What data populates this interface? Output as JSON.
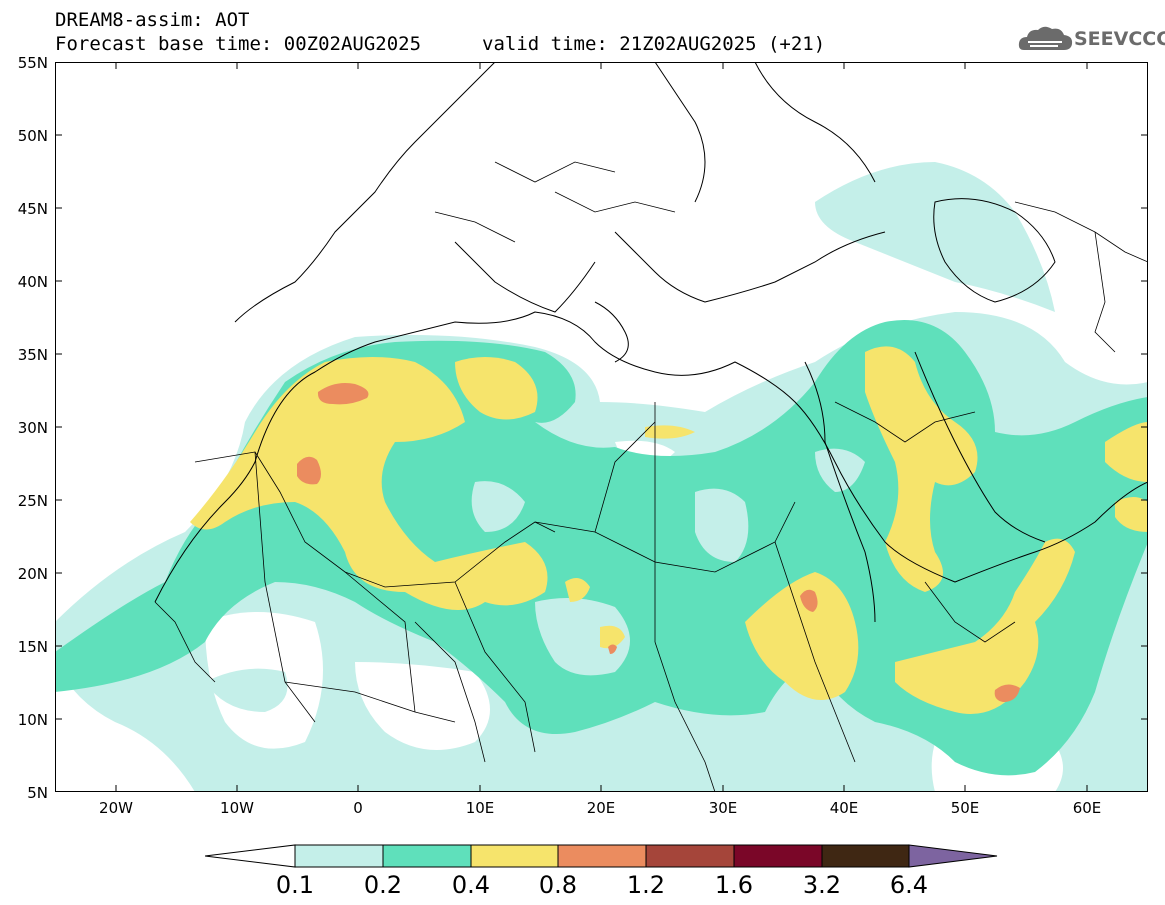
{
  "header": {
    "title": "DREAM8-assim: AOT",
    "base_time": "Forecast base time: 00Z02AUG2025",
    "valid_time": "valid time: 21Z02AUG2025 (+21)"
  },
  "logo": {
    "text": "SEEVCCC",
    "icon": "cloud-icon",
    "color": "#6b6b6b"
  },
  "map": {
    "lat_labels": [
      "55N",
      "50N",
      "45N",
      "40N",
      "35N",
      "30N",
      "25N",
      "20N",
      "15N",
      "10N",
      "5N"
    ],
    "lon_labels": [
      "20W",
      "10W",
      "0",
      "10E",
      "20E",
      "30E",
      "40E",
      "50E",
      "60E"
    ],
    "extent": {
      "lon_min": -25,
      "lon_max": 65,
      "lat_min": 5,
      "lat_max": 55
    }
  },
  "colorbar": {
    "levels": [
      "0.1",
      "0.2",
      "0.4",
      "0.8",
      "1.2",
      "1.6",
      "3.2",
      "6.4"
    ],
    "colors": [
      "#ffffff",
      "#c4efe9",
      "#5fe0bb",
      "#f6e46c",
      "#eb8c5f",
      "#a5453a",
      "#7a0628",
      "#3f2713",
      "#7d64a0"
    ]
  }
}
